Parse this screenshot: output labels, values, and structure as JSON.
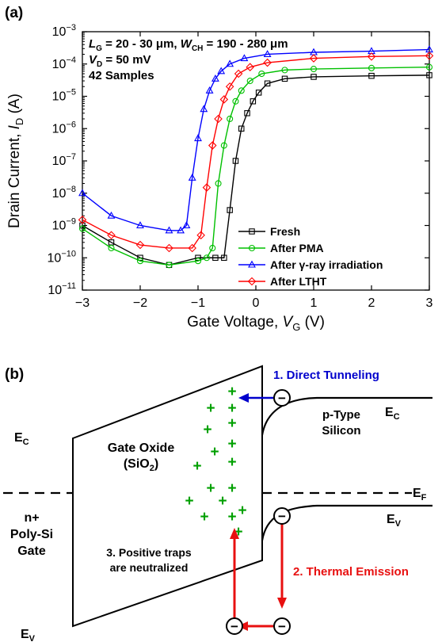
{
  "chart_data": [
    {
      "panel_label": "(a)",
      "type": "line",
      "xlabel": "Gate Voltage, V_G (V)",
      "xlabel_parts": [
        "Gate Voltage, ",
        "V",
        "G",
        " (V)"
      ],
      "ylabel": "Drain Current, I_D (A)",
      "ylabel_parts": [
        "Drain Current, ",
        "I",
        "D",
        " (A)"
      ],
      "xlim": [
        -3,
        3
      ],
      "ylim": [
        1e-11,
        0.001
      ],
      "yscale": "log",
      "xticks": [
        -3,
        -2,
        -1,
        0,
        1,
        2,
        3
      ],
      "xtick_labels": [
        "−3",
        "−2",
        "−1",
        "0",
        "1",
        "2",
        "3"
      ],
      "ytick_exponents": [
        -11,
        -10,
        -9,
        -8,
        -7,
        -6,
        -5,
        -4,
        -3
      ],
      "ytick_base": "10",
      "annotations": {
        "line1": [
          "L",
          "G",
          " = 20 - 30 μm, ",
          "W",
          "CH",
          " = 190 - 280 μm"
        ],
        "line2": [
          "V",
          "D",
          " = 50 mV"
        ],
        "line3": "42 Samples"
      },
      "legend_position": "bottom-right",
      "series": [
        {
          "name": "Fresh",
          "color": "#000000",
          "marker": "square",
          "x": [
            -3,
            -2.5,
            -2,
            -1.5,
            -1,
            -0.7,
            -0.55,
            -0.45,
            -0.35,
            -0.25,
            -0.15,
            -0.05,
            0.05,
            0.2,
            0.5,
            1,
            2,
            3
          ],
          "y": [
            1e-09,
            3e-10,
            1e-10,
            6e-11,
            1e-10,
            1e-10,
            1e-10,
            3e-09,
            1e-07,
            1e-06,
            3e-06,
            7e-06,
            1.3e-05,
            2.5e-05,
            3.5e-05,
            4e-05,
            4.3e-05,
            4.5e-05
          ]
        },
        {
          "name": "After PMA",
          "color": "#00c000",
          "marker": "circle",
          "x": [
            -3,
            -2.5,
            -2,
            -1.5,
            -1,
            -0.85,
            -0.75,
            -0.65,
            -0.55,
            -0.45,
            -0.35,
            -0.25,
            -0.1,
            0.1,
            0.5,
            1,
            2,
            3
          ],
          "y": [
            8e-10,
            2e-10,
            8e-11,
            6e-11,
            8e-11,
            1e-10,
            2e-10,
            2e-08,
            3e-07,
            2e-06,
            7e-06,
            1.5e-05,
            3e-05,
            5e-05,
            6.5e-05,
            7e-05,
            7.5e-05,
            8e-05
          ]
        },
        {
          "name": "After γ-ray irradiation",
          "color": "#0000ff",
          "marker": "triangle",
          "x": [
            -3,
            -2.5,
            -2,
            -1.5,
            -1.3,
            -1.2,
            -1.1,
            -1.0,
            -0.9,
            -0.8,
            -0.7,
            -0.6,
            -0.45,
            -0.2,
            0.2,
            1,
            2,
            3
          ],
          "y": [
            1e-08,
            2e-09,
            1e-09,
            7e-10,
            7e-10,
            1e-09,
            3e-08,
            5e-07,
            4e-06,
            1.5e-05,
            3.5e-05,
            6e-05,
            0.0001,
            0.00015,
            0.0002,
            0.00023,
            0.00025,
            0.00028
          ]
        },
        {
          "name": "After LTHT",
          "color": "#ff0000",
          "marker": "diamond",
          "x": [
            -3,
            -2.5,
            -2,
            -1.5,
            -1.1,
            -0.95,
            -0.85,
            -0.75,
            -0.65,
            -0.55,
            -0.45,
            -0.3,
            -0.1,
            0.2,
            1,
            2,
            3
          ],
          "y": [
            1.5e-09,
            5e-10,
            2.5e-10,
            2e-10,
            2e-10,
            5e-10,
            1.5e-08,
            3e-07,
            2e-06,
            8e-06,
            2e-05,
            5e-05,
            8e-05,
            0.00011,
            0.00015,
            0.00017,
            0.00018
          ]
        }
      ]
    },
    {
      "panel_label": "(b)",
      "type": "diagram",
      "labels": {
        "direct_tunneling": "1. Direct Tunneling",
        "thermal_emission": "2. Thermal Emission",
        "traps_line1": "3. Positive traps",
        "traps_line2": "are neutralized",
        "oxide_line1": "Gate Oxide",
        "oxide_line2_prefix": "(SiO",
        "oxide_line2_sub": "2",
        "oxide_line2_suffix": ")",
        "silicon_line1": "p-Type",
        "silicon_line2": "Silicon",
        "gate_line1": "n+",
        "gate_line2": "Poly-Si",
        "gate_line3": "Gate",
        "ec_main": "E",
        "ec_sub": "C",
        "ev_main": "E",
        "ev_sub": "V",
        "ef_main": "E",
        "ef_sub": "F",
        "plus": "+",
        "minus": "−"
      },
      "colors": {
        "tunneling": "#0000cc",
        "emission": "#e81010",
        "traps": "#00a000"
      }
    }
  ]
}
